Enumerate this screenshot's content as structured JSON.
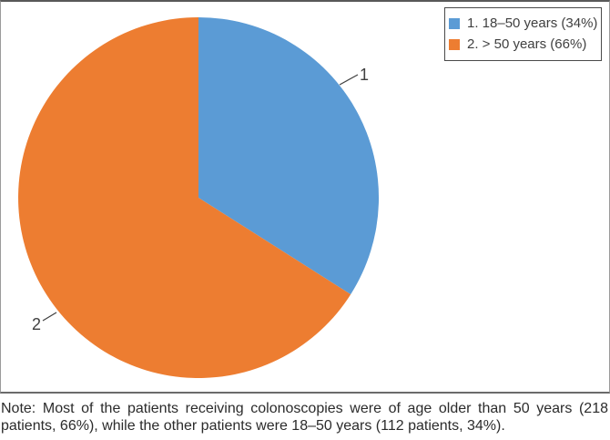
{
  "chart_data": {
    "type": "pie",
    "title": "",
    "start_angle": 0,
    "direction": "clockwise",
    "legend_position": "top-right",
    "categories": [
      "18–50 years",
      "> 50 years"
    ],
    "values": [
      34,
      66
    ],
    "unit": "%",
    "slices": [
      {
        "id": "1",
        "category": "18–50 years",
        "percent": 34,
        "patients": 112,
        "color": "#5B9BD5",
        "legend_label": "1. 18–50 years (34%)"
      },
      {
        "id": "2",
        "category": "> 50 years",
        "percent": 66,
        "patients": 218,
        "color": "#ED7D31",
        "legend_label": "2. > 50 years (66%)"
      }
    ]
  },
  "note": "Note: Most of the patients receiving colonoscopies were of age older than 50 years (218 patients, 66%), while the other patients were 18–50 years (112 patients, 34%)."
}
